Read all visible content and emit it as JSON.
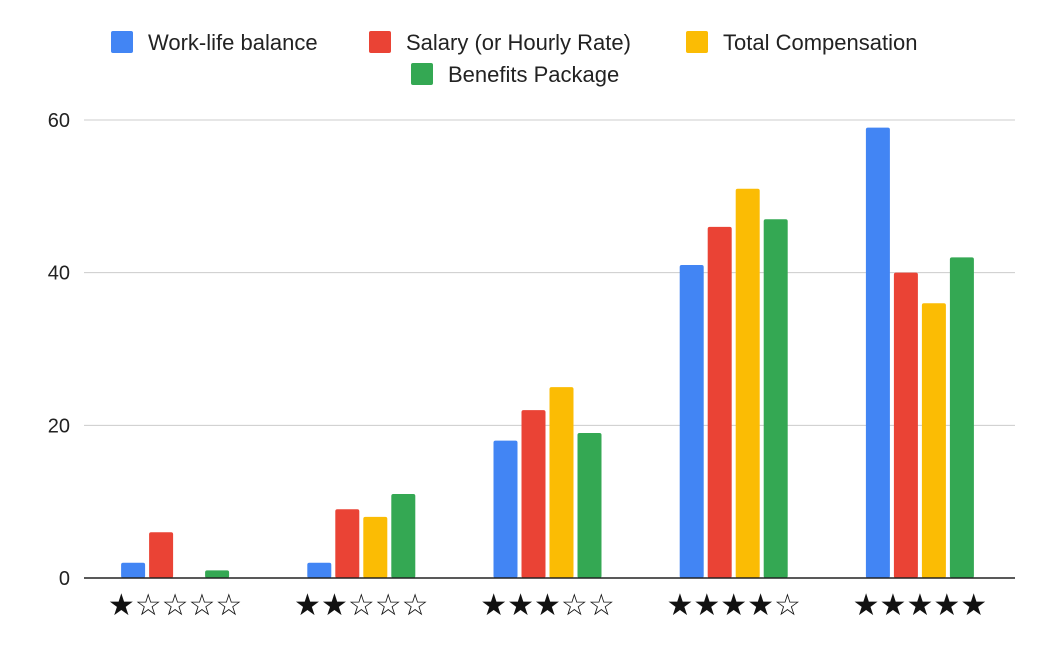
{
  "chart_data": {
    "type": "bar",
    "categories": [
      "★☆☆☆☆",
      "★★☆☆☆",
      "★★★☆☆",
      "★★★★☆",
      "★★★★★"
    ],
    "series": [
      {
        "name": "Work-life balance",
        "color": "#4285F4",
        "values": [
          2,
          2,
          18,
          41,
          59
        ]
      },
      {
        "name": "Salary (or Hourly Rate)",
        "color": "#EA4335",
        "values": [
          6,
          9,
          22,
          46,
          40
        ]
      },
      {
        "name": "Total Compensation",
        "color": "#FBBC04",
        "values": [
          0,
          8,
          25,
          51,
          36
        ]
      },
      {
        "name": "Benefits Package",
        "color": "#34A853",
        "values": [
          1,
          11,
          19,
          47,
          42
        ]
      }
    ],
    "yticks": [
      0,
      20,
      40,
      60
    ],
    "ylim": [
      0,
      60
    ],
    "grid": true,
    "legend_position": "top"
  }
}
